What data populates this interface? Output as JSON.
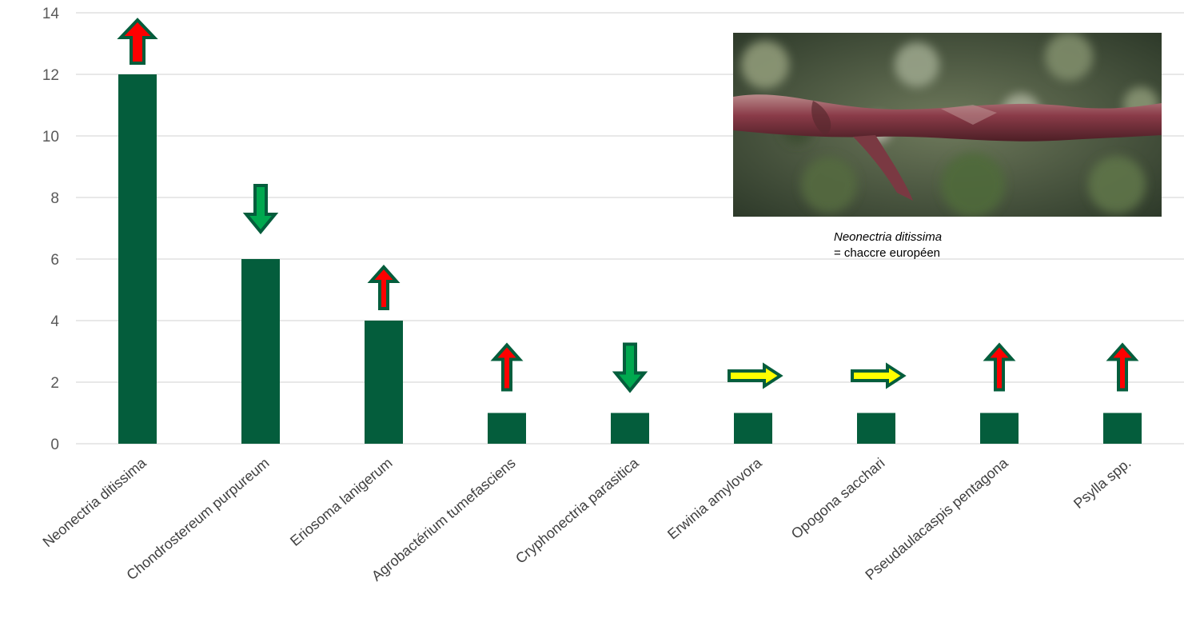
{
  "chart_data": {
    "type": "bar",
    "categories": [
      "Neonectria ditissima",
      "Chondrostereum purpureum",
      "Eriosoma lanigerum",
      "Agrobactérium tumefasciens",
      "Cryphonectria parasitica",
      "Erwinia amylovora",
      "Opogona sacchari",
      "Pseudaulacaspis pentagona",
      "Psylla spp."
    ],
    "values": [
      12,
      6,
      4,
      1,
      1,
      1,
      1,
      1,
      1
    ],
    "trends": [
      "up",
      "down",
      "up",
      "up",
      "down",
      "stable",
      "stable",
      "up",
      "up"
    ],
    "ylim": [
      0,
      14
    ],
    "yticks": [
      0,
      2,
      4,
      6,
      8,
      10,
      12,
      14
    ],
    "grid": true,
    "bar_color": "#045d3c",
    "trend_colors": {
      "up": "#ff0000",
      "down": "#00a84f",
      "stable": "#ffff00",
      "outline": "#045d3c"
    }
  },
  "inset": {
    "caption_italic": "Neonectria ditissima",
    "caption_text": "= chaccre européen"
  }
}
